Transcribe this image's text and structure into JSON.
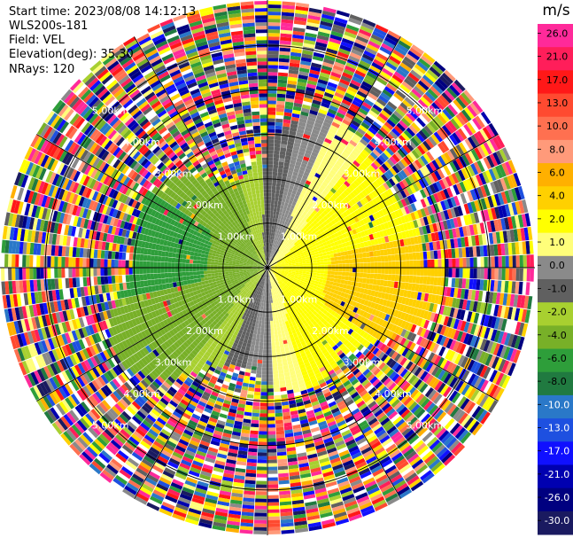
{
  "header": {
    "start_time": "Start time: 2023/08/08 14:12:13",
    "instrument": "WLS200s-181",
    "field": "Field: VEL",
    "elevation": "Elevation(deg): 35.30",
    "nrays": "NRays: 120"
  },
  "chart_data": {
    "type": "heatmap",
    "projection": "polar",
    "field": "VEL",
    "n_rays": 120,
    "range_unit": "km",
    "range_rings_km": [
      1.0,
      2.0,
      3.0,
      4.0,
      5.0
    ],
    "ring_labels": [
      "1.00km",
      "2.00km",
      "3.00km",
      "4.00km",
      "5.00km"
    ],
    "max_range_km": 6.0,
    "colorbar": {
      "unit": "m/s",
      "ticks": [
        "26.0",
        "21.0",
        "17.0",
        "13.0",
        "10.0",
        "8.0",
        "6.0",
        "4.0",
        "2.0",
        "1.0",
        "0.0",
        "-1.0",
        "-2.0",
        "-4.0",
        "-6.0",
        "-8.0",
        "-10.0",
        "-13.0",
        "-17.0",
        "-21.0",
        "-26.0",
        "-30.0"
      ],
      "colors": [
        "#ff2a9a",
        "#ff1e5a",
        "#ff1818",
        "#ff4a30",
        "#ff7050",
        "#ff9a7a",
        "#ffb000",
        "#ffd000",
        "#ffff00",
        "#fffe7a",
        "#8a8a8a",
        "#606060",
        "#a8d030",
        "#78b028",
        "#2e9e3a",
        "#207a40",
        "#2a78c8",
        "#1e50e0",
        "#1010ff",
        "#0000b0",
        "#000080",
        "#1a1a60"
      ],
      "range": [
        -30.0,
        30.0
      ]
    }
  }
}
